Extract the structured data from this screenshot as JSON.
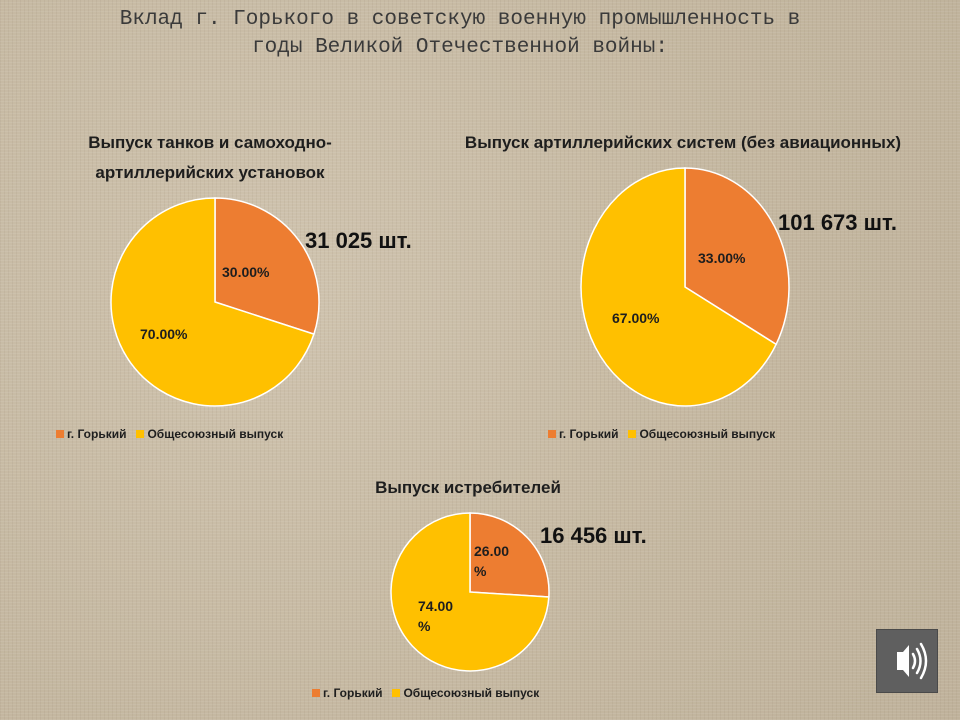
{
  "title": "Вклад г. Горького в советскую военную промышленность в\nгоды Великой Отечественной войны:",
  "colors": {
    "gorky": "#ed7d31",
    "union": "#ffc000",
    "slice_border": "#ffffff"
  },
  "chart_data": [
    {
      "type": "pie",
      "title_lines": [
        "Выпуск танков и самоходно-",
        "артиллерийских установок"
      ],
      "total_label": "31 025 шт.",
      "categories": [
        "г. Горький",
        "Общесоюзный выпуск"
      ],
      "values": [
        30,
        70
      ],
      "labels": [
        "30.00%",
        "70.00%"
      ],
      "legend": "bottom"
    },
    {
      "type": "pie",
      "title_lines": [
        "Выпуск артиллерийских систем (без авиационных)"
      ],
      "total_label": "101 673 шт.",
      "categories": [
        "г. Горький",
        "Общесоюзный выпуск"
      ],
      "values": [
        33,
        67
      ],
      "labels": [
        "33.00%",
        "67.00%"
      ],
      "legend": "bottom"
    },
    {
      "type": "pie",
      "title_lines": [
        "Выпуск истребителей"
      ],
      "total_label": "16 456 шт.",
      "categories": [
        "г. Горький",
        "Общесоюзный выпуск"
      ],
      "values": [
        26,
        74
      ],
      "labels": [
        "26.00\n%",
        "74.00\n%"
      ],
      "legend": "bottom"
    }
  ],
  "audio": {
    "icon": "speaker-icon"
  }
}
